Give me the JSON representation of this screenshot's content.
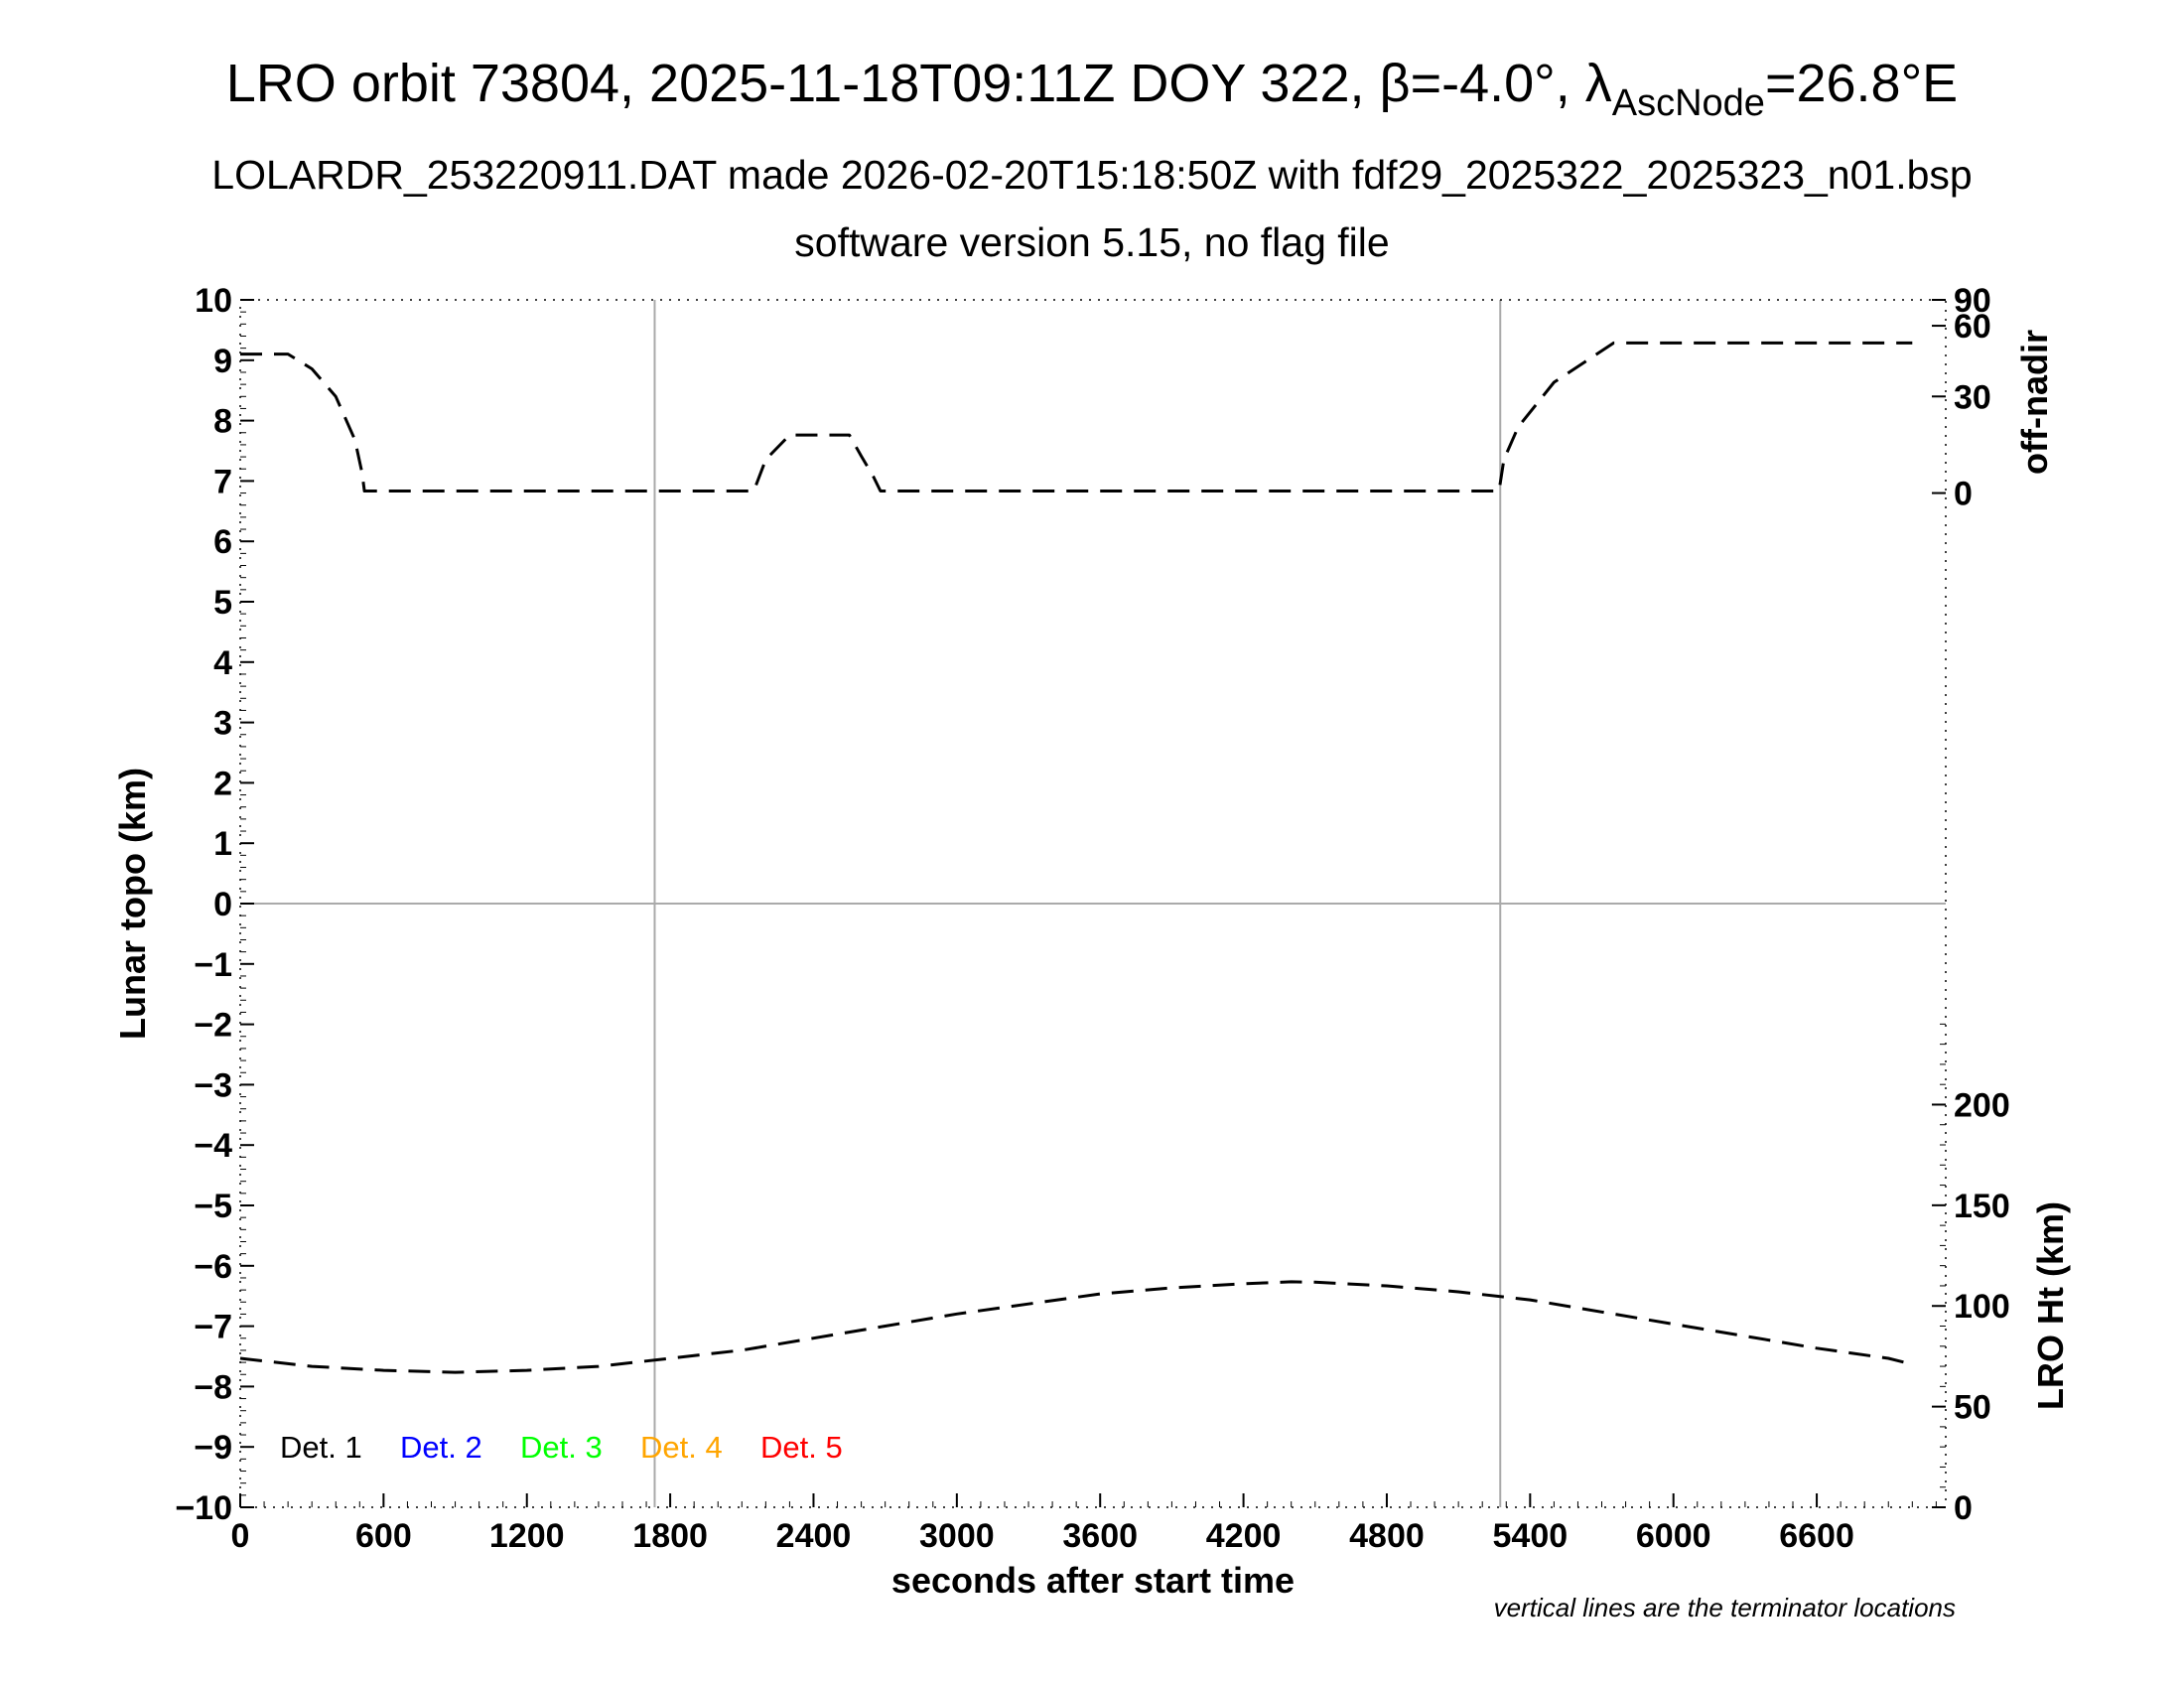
{
  "chart_data": {
    "type": "line",
    "title": {
      "part1": "LRO orbit 73804, 2025-11-18T09:11Z DOY 322, ",
      "beta_symbol": "β",
      "beta_value": "=-4.0°, ",
      "lambda_symbol": "λ",
      "lambda_subscript": "AscNode",
      "lambda_value": "=26.8°E"
    },
    "subtitle_1": "LOLARDR_253220911.DAT made 2026-02-20T15:18:50Z with fdf29_2025322_2025323_n01.bsp",
    "subtitle_2": "software version 5.15, no flag file",
    "xlabel": "seconds after start time",
    "ylabel_left": "Lunar topo (km)",
    "ylabel_right_top": "off-nadir",
    "ylabel_right_bottom": "LRO Ht (km)",
    "footnote": "vertical lines are the terminator locations",
    "xlim": [
      0,
      7140
    ],
    "ylim_left": [
      -10,
      10
    ],
    "x_ticks": [
      "0",
      "600",
      "1200",
      "1800",
      "2400",
      "3000",
      "3600",
      "4200",
      "4800",
      "5400",
      "6000",
      "6600"
    ],
    "x_tick_values": [
      0,
      600,
      1200,
      1800,
      2400,
      3000,
      3600,
      4200,
      4800,
      5400,
      6000,
      6600
    ],
    "y_left_ticks": [
      "10",
      "9",
      "8",
      "7",
      "6",
      "5",
      "4",
      "3",
      "2",
      "1",
      "0",
      "−1",
      "−2",
      "−3",
      "−4",
      "−5",
      "−6",
      "−7",
      "−8",
      "−9",
      "−10"
    ],
    "y_left_tick_values": [
      10,
      9,
      8,
      7,
      6,
      5,
      4,
      3,
      2,
      1,
      0,
      -1,
      -2,
      -3,
      -4,
      -5,
      -6,
      -7,
      -8,
      -9,
      -10
    ],
    "off_nadir_axis": {
      "ticks": [
        "90",
        "60",
        "30",
        "0"
      ],
      "tick_values": [
        90,
        60,
        30,
        0
      ],
      "maps_to_left": {
        "deg_0": 6.8,
        "deg_90": 10.0
      }
    },
    "ht_axis": {
      "ticks": [
        "200",
        "150",
        "100",
        "50",
        "0"
      ],
      "tick_values": [
        200,
        150,
        100,
        50,
        0
      ],
      "maps_to_left": {
        "km_0": -10.0,
        "km_200": -3.33
      }
    },
    "terminator_x": [
      1735,
      5275
    ],
    "grid": "zero line and terminator lines only",
    "legend": {
      "placement": "bottom-left",
      "entries": [
        {
          "name": "Det. 1",
          "color": "#000000"
        },
        {
          "name": "Det. 2",
          "color": "#0000ff"
        },
        {
          "name": "Det. 3",
          "color": "#00ff00"
        },
        {
          "name": "Det. 4",
          "color": "#ffa500"
        },
        {
          "name": "Det. 5",
          "color": "#ff0000"
        }
      ]
    },
    "series": [
      {
        "axis": "off-nadir",
        "style": "dashed",
        "color": "#000000",
        "x": [
          0,
          200,
          300,
          400,
          480,
          510,
          520,
          800,
          1500,
          2000,
          2150,
          2200,
          2300,
          2550,
          2600,
          2650,
          2680,
          2700,
          3000,
          4000,
          5000,
          5270,
          5290,
          5350,
          5500,
          5750,
          7000
        ],
        "y": [
          46,
          46,
          40,
          30,
          16,
          6,
          0.6,
          0.6,
          0.6,
          0.6,
          0.6,
          10,
          17.5,
          17.5,
          11,
          5,
          0.6,
          0.6,
          0.6,
          0.6,
          0.6,
          0.6,
          10,
          20,
          35,
          51,
          51
        ]
      },
      {
        "axis": "LRO Ht",
        "style": "dashed",
        "color": "#000000",
        "x": [
          0,
          300,
          600,
          900,
          1200,
          1500,
          1800,
          2100,
          2400,
          2700,
          3000,
          3300,
          3600,
          3900,
          4200,
          4400,
          4500,
          4800,
          5100,
          5400,
          5700,
          6000,
          6300,
          6600,
          6900,
          7000
        ],
        "y": [
          74,
          70,
          68,
          67,
          68,
          70,
          74,
          78,
          84,
          90,
          96,
          101,
          106,
          109,
          111,
          112,
          111.8,
          110,
          107,
          103,
          97,
          91,
          85,
          79,
          74,
          71
        ]
      }
    ]
  }
}
